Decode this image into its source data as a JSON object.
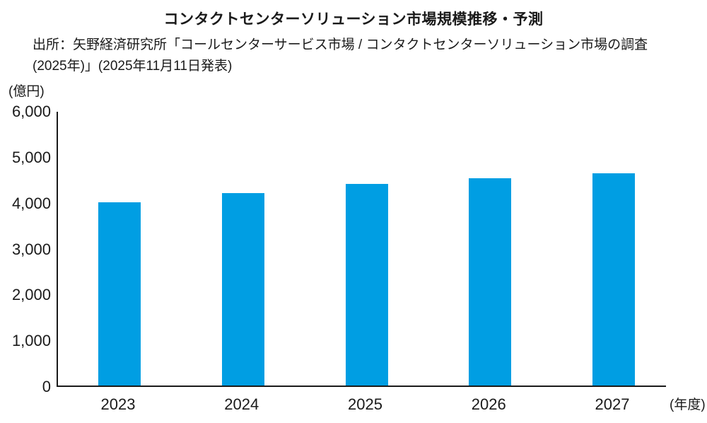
{
  "page": {
    "title": "コンタクトセンターソリューション市場規模推移・予測"
  },
  "source": {
    "line1": "出所：矢野経済研究所「コールセンターサービス市場 / コンタクトセンターソリューション市場の調査",
    "line2": "(2025年)」(2025年11月11日発表)"
  },
  "chart_data": {
    "type": "bar",
    "title": "コンタクトセンターソリューション市場規模推移・予測",
    "source_line1": "出所：矢野経済研究所「コールセンターサービス市場 / コンタクトセンターソリューション市場の調査",
    "source_line2": "(2025年)」(2025年11月11日発表)",
    "ylabel": "(億円)",
    "xlabel": "(年度)",
    "categories": [
      "2023",
      "2024",
      "2025",
      "2026",
      "2027"
    ],
    "values": [
      4000,
      4200,
      4390,
      4520,
      4630
    ],
    "ylim": [
      0,
      6000
    ],
    "ytick_step": 1000,
    "ytick_labels": [
      "6,000",
      "5,000",
      "4,000",
      "3,000",
      "2,000",
      "1,000",
      "0"
    ],
    "bar_color": "#009EE3",
    "grid": false,
    "legend_position": "none"
  }
}
